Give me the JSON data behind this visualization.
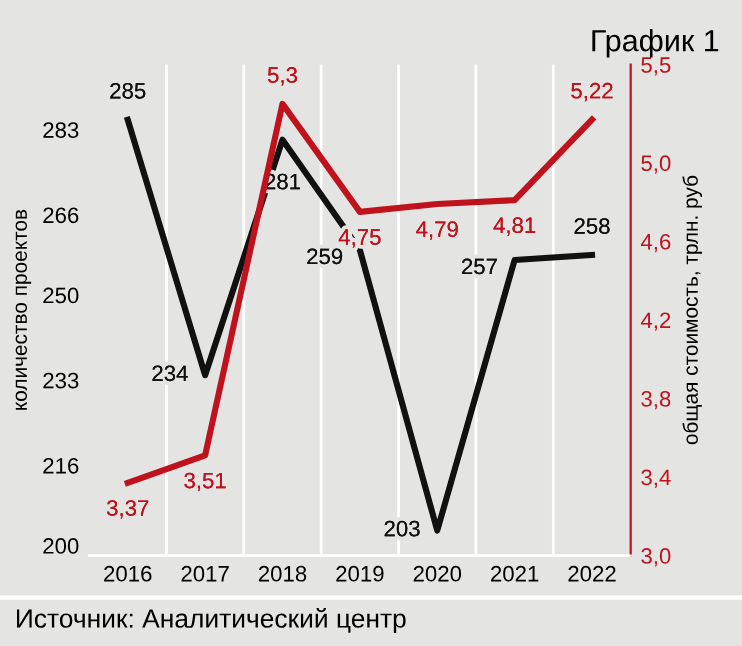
{
  "chart_data": {
    "type": "line",
    "title": "График 1",
    "ylabel": "количество проектов",
    "y2label": "общая стоимость, трлн. руб",
    "categories": [
      "2016",
      "2017",
      "2018",
      "2019",
      "2020",
      "2021",
      "2022"
    ],
    "series": [
      {
        "color": "#111111",
        "values": [
          285,
          234,
          281,
          259,
          203,
          257,
          258
        ],
        "data_labels": true
      },
      {
        "color": "#c0121c",
        "axis": "y2",
        "values": [
          3.37,
          3.51,
          5.3,
          4.75,
          4.79,
          4.81,
          5.22
        ],
        "value_labels": [
          "3,37",
          "3,51",
          "5,3",
          "4,75",
          "4,79",
          "4,81",
          "5,22"
        ]
      }
    ],
    "ylim": [
      198,
      296
    ],
    "yticks": [
      200,
      216,
      233,
      250,
      266,
      283
    ],
    "y2lim": [
      3.0,
      5.5
    ],
    "y2ticks": [
      {
        "value": 3.0,
        "label": "3,0"
      },
      {
        "value": 3.4,
        "label": "3,4"
      },
      {
        "value": 3.8,
        "label": "3,8"
      },
      {
        "value": 4.2,
        "label": "4,2"
      },
      {
        "value": 4.6,
        "label": "4,6"
      },
      {
        "value": 5.0,
        "label": "5,0"
      },
      {
        "value": 5.5,
        "label": "5,5"
      }
    ],
    "grid": "x",
    "annotations": [
      "Источник: Аналитический центр"
    ]
  }
}
